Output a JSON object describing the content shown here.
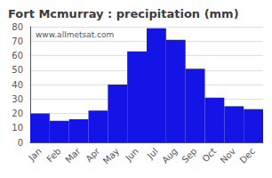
{
  "chart_data": {
    "type": "bar",
    "title": "Fort Mcmurray : precipitation (mm)",
    "categories": [
      "Jan",
      "Feb",
      "Mar",
      "Apr",
      "May",
      "Jun",
      "Jul",
      "Aug",
      "Sep",
      "Oct",
      "Nov",
      "Dec"
    ],
    "values": [
      20,
      15,
      16,
      22,
      40,
      63,
      79,
      71,
      51,
      31,
      25,
      23
    ],
    "color": "#1414e6",
    "ylim": [
      0,
      80
    ],
    "yticks": [
      0,
      10,
      20,
      30,
      40,
      50,
      60,
      70,
      80
    ],
    "grid": true,
    "annotations": [
      "www.allmetsat.com"
    ]
  }
}
